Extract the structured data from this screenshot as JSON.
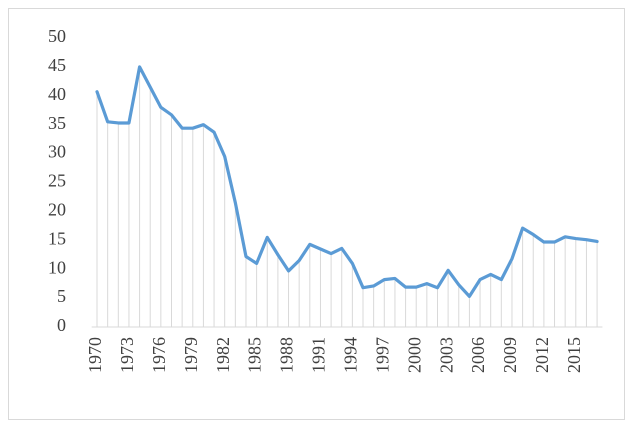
{
  "chart_data": {
    "type": "line",
    "categories": [
      "1970",
      null,
      null,
      "1973",
      null,
      null,
      "1976",
      null,
      null,
      "1979",
      null,
      null,
      "1982",
      null,
      null,
      "1985",
      null,
      null,
      "1988",
      null,
      null,
      "1991",
      null,
      null,
      "1994",
      null,
      null,
      "1997",
      null,
      null,
      "2000",
      null,
      null,
      "2003",
      null,
      null,
      "2006",
      null,
      null,
      "2009",
      null,
      null,
      "2012",
      null,
      null,
      "2015",
      null,
      null
    ],
    "values": [
      40.7,
      35.5,
      35.3,
      35.3,
      45,
      41.5,
      38,
      36.7,
      34.4,
      34.4,
      35,
      33.7,
      29.5,
      21.5,
      12.2,
      11,
      15.5,
      12.5,
      9.7,
      11.5,
      14.3,
      13.5,
      12.7,
      13.6,
      11,
      6.8,
      7.1,
      8.2,
      8.4,
      6.9,
      6.9,
      7.5,
      6.8,
      9.8,
      7.3,
      5.3,
      8.2,
      9.1,
      8.2,
      11.8,
      17.1,
      16,
      14.7,
      14.7,
      15.6,
      15.3,
      15.1,
      14.8
    ],
    "color": "#5b9bd5",
    "drop_lines": true,
    "ylim": [
      0,
      50
    ],
    "yticks": [
      0,
      5,
      10,
      15,
      20,
      25,
      30,
      35,
      40,
      45,
      50
    ],
    "grid": false
  }
}
